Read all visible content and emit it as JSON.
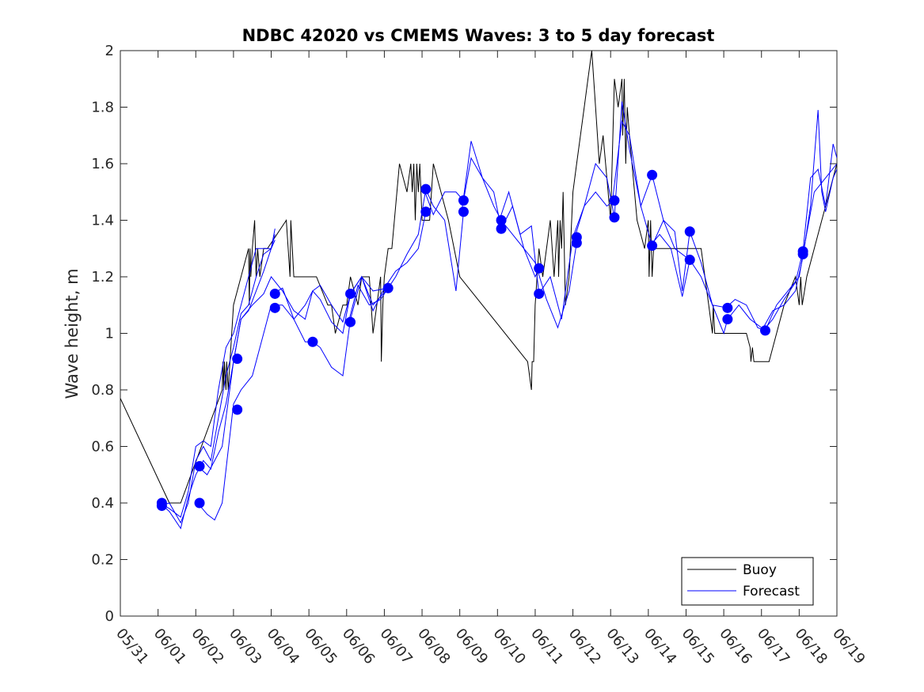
{
  "chart_data": {
    "type": "line",
    "title": "NDBC 42020 vs CMEMS Waves: 3 to 5 day forecast",
    "xlabel": "",
    "ylabel": "Wave height, m",
    "xlim": [
      "05/31",
      "06/19"
    ],
    "ylim": [
      0,
      2
    ],
    "x_ticks": [
      "05/31",
      "06/01",
      "06/02",
      "06/03",
      "06/04",
      "06/05",
      "06/06",
      "06/07",
      "06/08",
      "06/09",
      "06/10",
      "06/11",
      "06/12",
      "06/13",
      "06/14",
      "06/15",
      "06/16",
      "06/17",
      "06/18",
      "06/19"
    ],
    "y_ticks": [
      "0",
      "0.2",
      "0.4",
      "0.6",
      "0.8",
      "1",
      "1.2",
      "1.4",
      "1.6",
      "1.8",
      "2"
    ],
    "grid": false,
    "legend": {
      "position": "bottom-right",
      "entries": [
        "Buoy",
        "Forecast"
      ]
    },
    "colors": {
      "buoy": "#000000",
      "forecast": "#0000ff"
    },
    "series": [
      {
        "name": "Buoy",
        "x": [
          0.0,
          1.3,
          1.6,
          2.7,
          2.72,
          2.74,
          2.76,
          2.8,
          2.82,
          2.86,
          3.0,
          3.2,
          3.4,
          3.42,
          3.44,
          3.46,
          3.5,
          3.56,
          3.6,
          3.64,
          3.7,
          3.8,
          3.9,
          4.4,
          4.5,
          4.52,
          4.56,
          4.6,
          4.7,
          4.9,
          5.0,
          5.1,
          5.2,
          5.5,
          5.6,
          5.7,
          5.9,
          6.0,
          6.1,
          6.3,
          6.4,
          6.6,
          6.7,
          6.9,
          6.92,
          6.96,
          7.0,
          7.1,
          7.2,
          7.4,
          7.6,
          7.7,
          7.74,
          7.78,
          7.82,
          7.86,
          7.9,
          7.94,
          8.0,
          8.2,
          8.3,
          8.5,
          8.7,
          9.0,
          10.8,
          10.9,
          10.92,
          10.96,
          11.0,
          11.1,
          11.2,
          11.4,
          11.5,
          11.6,
          11.62,
          11.66,
          11.7,
          11.74,
          11.8,
          11.9,
          12.0,
          12.1,
          12.2,
          12.3,
          12.4,
          12.5,
          12.6,
          12.7,
          12.8,
          13.0,
          13.1,
          13.2,
          13.3,
          13.32,
          13.36,
          13.4,
          13.44,
          13.5,
          13.7,
          13.9,
          14.0,
          14.02,
          14.06,
          14.1,
          14.14,
          14.2,
          14.4,
          14.6,
          14.8,
          15.0,
          15.4,
          15.5,
          15.6,
          15.7,
          15.72,
          15.76,
          15.8,
          16.0,
          16.2,
          16.4,
          16.6,
          16.7,
          16.72,
          16.76,
          16.8,
          17.2,
          17.4,
          17.6,
          17.9,
          18.0,
          18.04,
          18.08,
          18.2,
          18.4,
          18.6,
          18.8,
          19.0
        ],
        "y": [
          0.77,
          0.4,
          0.4,
          0.8,
          0.9,
          0.8,
          0.9,
          0.8,
          0.9,
          0.8,
          1.1,
          1.2,
          1.3,
          1.1,
          1.3,
          1.2,
          1.3,
          1.4,
          1.2,
          1.3,
          1.2,
          1.3,
          1.3,
          1.4,
          1.2,
          1.4,
          1.3,
          1.2,
          1.2,
          1.2,
          1.2,
          1.2,
          1.2,
          1.1,
          1.1,
          1.0,
          1.1,
          1.1,
          1.2,
          1.1,
          1.2,
          1.2,
          1.0,
          1.2,
          0.9,
          1.1,
          1.2,
          1.3,
          1.3,
          1.6,
          1.5,
          1.6,
          1.5,
          1.6,
          1.4,
          1.6,
          1.5,
          1.6,
          1.4,
          1.4,
          1.6,
          1.5,
          1.4,
          1.2,
          0.9,
          0.8,
          0.9,
          0.9,
          1.1,
          1.3,
          1.2,
          1.4,
          1.2,
          1.4,
          1.2,
          1.4,
          1.3,
          1.5,
          1.1,
          1.2,
          1.5,
          1.6,
          1.7,
          1.8,
          1.9,
          2.0,
          1.8,
          1.6,
          1.7,
          1.4,
          1.9,
          1.8,
          1.9,
          1.7,
          1.9,
          1.6,
          1.8,
          1.7,
          1.4,
          1.3,
          1.4,
          1.2,
          1.4,
          1.2,
          1.3,
          1.3,
          1.3,
          1.3,
          1.3,
          1.3,
          1.3,
          1.2,
          1.1,
          1.0,
          1.1,
          1.0,
          1.0,
          1.0,
          1.0,
          1.0,
          1.0,
          0.95,
          0.9,
          0.95,
          0.9,
          0.9,
          1.0,
          1.1,
          1.2,
          1.1,
          1.2,
          1.1,
          1.2,
          1.3,
          1.4,
          1.5,
          1.6
        ]
      },
      {
        "name": "Forecast",
        "segments": [
          {
            "x": [
              1.05,
              1.3,
              1.6,
              1.8,
              2.0,
              2.2,
              2.4,
              2.6,
              2.8,
              3.0,
              3.2,
              3.4,
              3.6,
              3.8,
              4.0,
              4.1
            ],
            "y": [
              0.4,
              0.38,
              0.35,
              0.44,
              0.6,
              0.62,
              0.6,
              0.8,
              0.95,
              1.0,
              1.1,
              1.2,
              1.3,
              1.3,
              1.3,
              1.37
            ]
          },
          {
            "x": [
              1.05,
              1.3,
              1.6,
              1.8,
              2.0,
              2.2,
              2.4,
              2.6,
              2.8,
              3.0,
              3.2,
              3.4,
              3.6,
              3.8,
              4.0,
              4.1
            ],
            "y": [
              0.39,
              0.4,
              0.33,
              0.4,
              0.55,
              0.6,
              0.55,
              0.7,
              0.85,
              0.95,
              1.07,
              1.1,
              1.2,
              1.28,
              1.3,
              1.33
            ]
          },
          {
            "x": [
              1.05,
              1.3,
              1.6,
              1.8,
              2.0,
              2.2,
              2.4,
              2.6,
              2.8,
              3.0,
              3.2,
              3.4,
              3.6,
              3.8,
              4.0,
              4.1
            ],
            "y": [
              0.4,
              0.37,
              0.31,
              0.42,
              0.5,
              0.55,
              0.52,
              0.65,
              0.75,
              0.9,
              1.05,
              1.08,
              1.15,
              1.22,
              1.3,
              1.35
            ]
          },
          {
            "x": [
              2.05,
              2.3,
              2.5,
              2.7,
              3.0,
              3.2,
              3.5,
              3.8,
              4.0,
              4.3,
              4.6,
              4.9,
              5.1,
              5.3,
              5.6,
              5.9,
              6.1,
              6.4,
              6.7,
              7.1
            ],
            "y": [
              0.4,
              0.36,
              0.34,
              0.4,
              0.75,
              0.8,
              0.85,
              1.0,
              1.1,
              1.1,
              1.05,
              0.97,
              0.97,
              0.95,
              0.88,
              0.85,
              1.05,
              1.2,
              1.1,
              1.16
            ]
          },
          {
            "x": [
              2.05,
              2.3,
              2.5,
              2.7,
              3.0,
              3.2,
              3.5,
              3.8,
              4.0,
              4.3,
              4.6,
              4.9,
              5.1,
              5.3,
              5.6,
              5.9,
              6.1,
              6.4,
              6.7,
              7.1
            ],
            "y": [
              0.53,
              0.5,
              0.55,
              0.6,
              0.9,
              1.05,
              1.1,
              1.14,
              1.2,
              1.15,
              1.08,
              1.05,
              1.15,
              1.17,
              1.1,
              1.04,
              1.14,
              1.2,
              1.15,
              1.16
            ]
          },
          {
            "x": [
              4.05,
              4.3,
              4.6,
              4.9,
              5.1,
              5.3,
              5.6,
              5.9,
              6.1,
              6.4,
              6.7,
              7.0,
              7.3,
              7.6,
              7.9,
              8.1
            ],
            "y": [
              1.14,
              1.16,
              1.05,
              1.1,
              1.15,
              1.12,
              1.04,
              1.0,
              1.14,
              1.2,
              1.08,
              1.16,
              1.22,
              1.25,
              1.3,
              1.43
            ]
          },
          {
            "x": [
              6.05,
              6.3,
              6.6,
              6.9,
              7.1,
              7.3,
              7.6,
              7.9,
              8.1,
              8.3,
              8.6,
              8.9,
              9.1
            ],
            "y": [
              1.04,
              1.17,
              1.1,
              1.12,
              1.16,
              1.2,
              1.28,
              1.35,
              1.51,
              1.45,
              1.4,
              1.15,
              1.43
            ]
          },
          {
            "x": [
              8.05,
              8.3,
              8.6,
              8.9,
              9.1,
              9.3,
              9.6,
              9.9,
              10.1,
              10.4,
              10.7,
              11.0,
              11.1
            ],
            "y": [
              1.51,
              1.42,
              1.5,
              1.5,
              1.47,
              1.62,
              1.55,
              1.45,
              1.4,
              1.35,
              1.3,
              1.2,
              1.23
            ]
          },
          {
            "x": [
              9.05,
              9.3,
              9.6,
              9.9,
              10.1,
              10.4,
              10.7,
              11.0,
              11.3,
              11.6,
              11.9,
              12.1
            ],
            "y": [
              1.43,
              1.68,
              1.55,
              1.5,
              1.37,
              1.45,
              1.3,
              1.25,
              1.12,
              1.02,
              1.15,
              1.32
            ]
          },
          {
            "x": [
              10.05,
              10.3,
              10.6,
              10.9,
              11.1,
              11.4,
              11.7,
              12.0,
              12.3,
              12.6,
              12.9,
              13.1
            ],
            "y": [
              1.4,
              1.5,
              1.35,
              1.38,
              1.14,
              1.2,
              1.05,
              1.34,
              1.45,
              1.5,
              1.45,
              1.47
            ]
          },
          {
            "x": [
              12.05,
              12.3,
              12.6,
              12.9,
              13.1,
              13.3,
              13.5,
              13.8,
              14.1,
              14.4,
              14.7,
              15.1
            ],
            "y": [
              1.34,
              1.45,
              1.6,
              1.55,
              1.41,
              1.82,
              1.65,
              1.45,
              1.31,
              1.4,
              1.3,
              1.26
            ]
          },
          {
            "x": [
              13.05,
              13.3,
              13.5,
              13.8,
              14.1,
              14.4,
              14.7,
              14.9,
              15.1,
              15.4,
              15.7,
              16.1
            ],
            "y": [
              1.47,
              1.75,
              1.7,
              1.45,
              1.56,
              1.4,
              1.36,
              1.15,
              1.36,
              1.25,
              1.1,
              1.09
            ]
          },
          {
            "x": [
              14.05,
              14.3,
              14.6,
              14.9,
              15.1,
              15.4,
              15.7,
              16.0,
              16.1,
              16.4,
              16.7,
              17.1
            ],
            "y": [
              1.31,
              1.35,
              1.3,
              1.13,
              1.26,
              1.2,
              1.1,
              1.0,
              1.05,
              1.1,
              1.05,
              1.01
            ]
          },
          {
            "x": [
              16.05,
              16.3,
              16.6,
              16.9,
              17.1,
              17.4,
              17.7,
              18.0,
              18.1,
              18.4,
              18.7,
              19.0
            ],
            "y": [
              1.09,
              1.12,
              1.1,
              1.02,
              1.01,
              1.1,
              1.15,
              1.2,
              1.28,
              1.5,
              1.55,
              1.6
            ]
          },
          {
            "x": [
              17.05,
              17.3,
              17.6,
              17.9,
              18.1,
              18.3,
              18.5,
              18.7,
              18.9,
              19.0
            ],
            "y": [
              1.01,
              1.05,
              1.12,
              1.18,
              1.29,
              1.55,
              1.58,
              1.45,
              1.67,
              1.62
            ]
          },
          {
            "x": [
              17.05,
              17.3,
              17.6,
              17.9,
              18.1,
              18.3,
              18.5,
              18.6,
              18.7,
              18.9,
              19.0
            ],
            "y": [
              1.02,
              1.08,
              1.1,
              1.15,
              1.27,
              1.45,
              1.79,
              1.5,
              1.43,
              1.55,
              1.58
            ]
          }
        ],
        "markers": {
          "x": [
            1.1,
            1.1,
            2.1,
            2.1,
            3.1,
            3.1,
            4.1,
            4.1,
            5.1,
            6.1,
            6.1,
            7.1,
            8.1,
            8.1,
            9.1,
            9.1,
            10.1,
            10.1,
            11.1,
            11.1,
            12.1,
            12.1,
            13.1,
            13.1,
            14.1,
            14.1,
            15.1,
            15.1,
            16.1,
            16.1,
            17.1,
            18.1,
            18.1
          ],
          "y": [
            0.4,
            0.39,
            0.53,
            0.4,
            0.91,
            0.73,
            1.14,
            1.09,
            0.97,
            1.14,
            1.04,
            1.16,
            1.51,
            1.43,
            1.47,
            1.43,
            1.4,
            1.37,
            1.23,
            1.14,
            1.34,
            1.32,
            1.47,
            1.41,
            1.56,
            1.31,
            1.36,
            1.26,
            1.09,
            1.05,
            1.01,
            1.29,
            1.28
          ]
        }
      }
    ]
  }
}
